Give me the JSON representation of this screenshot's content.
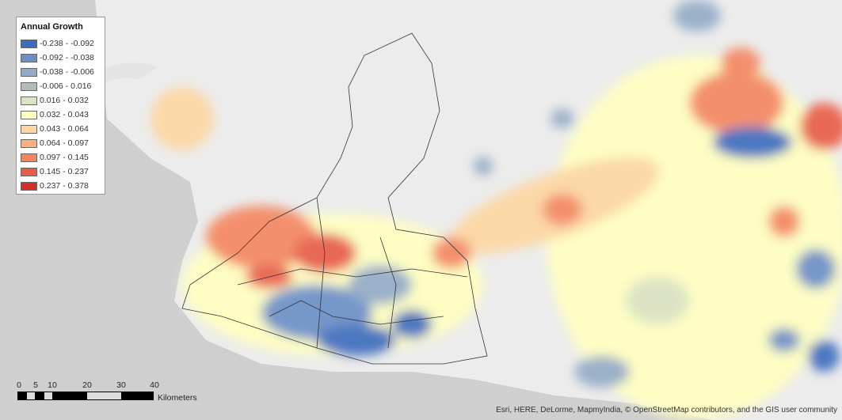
{
  "legend": {
    "title": "Annual Growth",
    "items": [
      {
        "label": "-0.238 - -0.092",
        "color": "#3b6cbd"
      },
      {
        "label": "-0.092 - -0.038",
        "color": "#6b8ec6"
      },
      {
        "label": "-0.038 - -0.006",
        "color": "#93aac6"
      },
      {
        "label": "-0.006 - 0.016",
        "color": "#aebdb8"
      },
      {
        "label": "0.016 - 0.032",
        "color": "#dbe3c0"
      },
      {
        "label": "0.032 - 0.043",
        "color": "#ffffc0"
      },
      {
        "label": "0.043 - 0.064",
        "color": "#fdd6a0"
      },
      {
        "label": "0.064 - 0.097",
        "color": "#fbb07e"
      },
      {
        "label": "0.097 - 0.145",
        "color": "#f4865f"
      },
      {
        "label": "0.145 - 0.237",
        "color": "#e85c45"
      },
      {
        "label": "0.237 - 0.378",
        "color": "#d42f26"
      }
    ]
  },
  "scalebar": {
    "ticks": [
      "0",
      "5",
      "10",
      "20",
      "30",
      "40"
    ],
    "units": "Kilometers"
  },
  "attribution": "Esri, HERE, DeLorme, MapmyIndia, © OpenStreetMap contributors, and the GIS user community"
}
